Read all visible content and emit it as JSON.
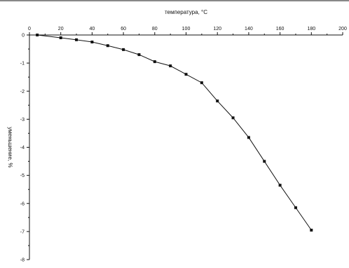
{
  "chart_data": {
    "type": "line",
    "title": "",
    "xlabel": "температура, °C",
    "ylabel": "уменьшение, %",
    "xlim": [
      0,
      200
    ],
    "ylim": [
      -8,
      0
    ],
    "x_ticks": [
      "0",
      "20",
      "40",
      "60",
      "80",
      "100",
      "120",
      "140",
      "160",
      "180",
      "200"
    ],
    "y_ticks": [
      "0",
      "-1",
      "-2",
      "-3",
      "-4",
      "-5",
      "-6",
      "-7",
      "-8"
    ],
    "x_axis_position": "top",
    "grid": false,
    "legend": "none",
    "series": [
      {
        "color": "#111111",
        "marker": "square",
        "x": [
          5,
          20,
          30,
          40,
          50,
          60,
          70,
          80,
          90,
          100,
          110,
          120,
          130,
          140,
          150,
          160,
          170,
          180
        ],
        "y": [
          0,
          -0.1,
          -0.17,
          -0.25,
          -0.38,
          -0.52,
          -0.7,
          -0.95,
          -1.1,
          -1.4,
          -1.7,
          -2.35,
          -2.95,
          -3.65,
          -4.5,
          -5.35,
          -6.15,
          -6.95
        ]
      }
    ]
  }
}
